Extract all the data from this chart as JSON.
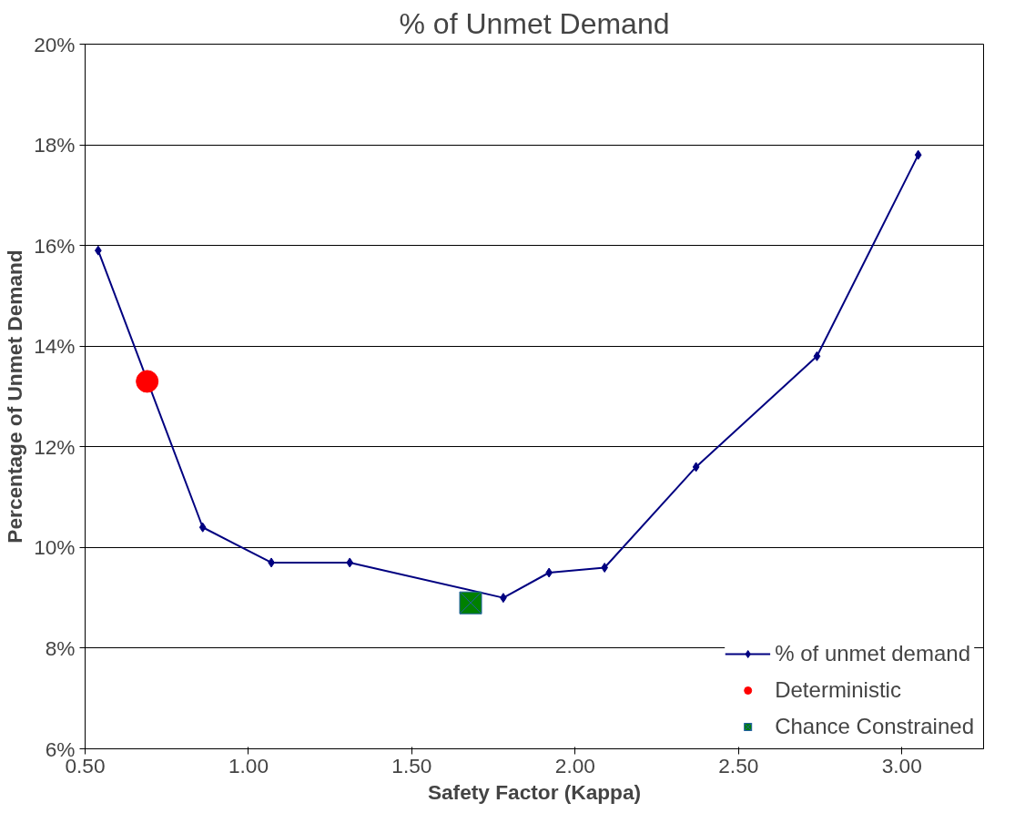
{
  "chart_data": {
    "type": "line",
    "title": "% of Unmet Demand",
    "xlabel": "Safety Factor (Kappa)",
    "ylabel": "Percentage of Unmet Demand",
    "xlim": [
      0.5,
      3.25
    ],
    "xticks": [
      {
        "value": 0.5,
        "label": "0.50"
      },
      {
        "value": 1.0,
        "label": "1.00"
      },
      {
        "value": 1.5,
        "label": "1.50"
      },
      {
        "value": 2.0,
        "label": "2.00"
      },
      {
        "value": 2.5,
        "label": "2.50"
      },
      {
        "value": 3.0,
        "label": "3.00"
      }
    ],
    "ylim": [
      6,
      20
    ],
    "yticks": [
      {
        "value": 6,
        "label": "6%"
      },
      {
        "value": 8,
        "label": "8%"
      },
      {
        "value": 10,
        "label": "10%"
      },
      {
        "value": 12,
        "label": "12%"
      },
      {
        "value": 14,
        "label": "14%"
      },
      {
        "value": 16,
        "label": "16%"
      },
      {
        "value": 18,
        "label": "18%"
      },
      {
        "value": 20,
        "label": "20%"
      }
    ],
    "grid": "y",
    "legend": "bottom right",
    "series": [
      {
        "name": "% of unmet demand",
        "marker": "diamond",
        "color": "#000080",
        "x": [
          0.54,
          0.86,
          1.07,
          1.31,
          1.78,
          1.92,
          2.09,
          2.37,
          2.74,
          3.05
        ],
        "values": [
          15.9,
          10.4,
          9.7,
          9.7,
          9.0,
          9.5,
          9.6,
          11.6,
          13.8,
          17.8
        ]
      },
      {
        "name": "Deterministic",
        "type": "scatter",
        "marker": "circle",
        "color": "#ff0000",
        "x": [
          0.69
        ],
        "values": [
          13.3
        ]
      },
      {
        "name": "Chance Constrained",
        "type": "scatter",
        "marker": "square",
        "color": "#008000",
        "x": [
          1.68
        ],
        "values": [
          8.9
        ]
      }
    ]
  }
}
